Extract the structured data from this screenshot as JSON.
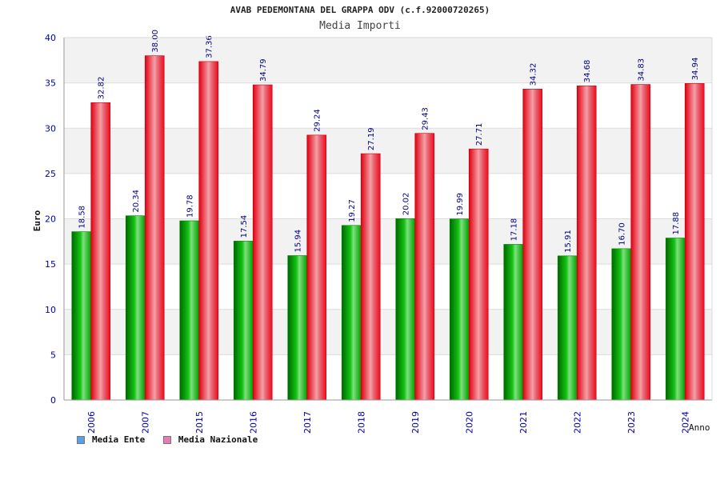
{
  "chart_data": {
    "type": "bar",
    "title": "AVAB PEDEMONTANA DEL GRAPPA ODV (c.f.92000720265)",
    "subtitle": "Media Importi",
    "xlabel": "Anno",
    "ylabel": "Euro",
    "ylim": [
      0,
      40
    ],
    "yticks": [
      0,
      5,
      10,
      15,
      20,
      25,
      30,
      35,
      40
    ],
    "grid": true,
    "legend_placement": "bottom-left",
    "categories": [
      "2006",
      "2007",
      "2015",
      "2016",
      "2017",
      "2018",
      "2019",
      "2020",
      "2021",
      "2022",
      "2023",
      "2024"
    ],
    "series": [
      {
        "name": "Media Ente",
        "values": [
          18.58,
          20.34,
          19.78,
          17.54,
          15.94,
          19.27,
          20.02,
          19.99,
          17.18,
          15.91,
          16.7,
          17.88
        ],
        "labels": [
          "18.58",
          "20.34",
          "19.78",
          "17.54",
          "15.94",
          "19.27",
          "20.02",
          "19.99",
          "17.18",
          "15.91",
          "16.70",
          "17.88"
        ],
        "color": "#00b000",
        "legend_color": "#5aa0e8"
      },
      {
        "name": "Media Nazionale",
        "values": [
          32.82,
          38.0,
          37.36,
          34.79,
          29.24,
          27.19,
          29.43,
          27.71,
          34.32,
          34.68,
          34.83,
          34.94
        ],
        "labels": [
          "32.82",
          "38.00",
          "37.36",
          "34.79",
          "29.24",
          "27.19",
          "29.43",
          "27.71",
          "34.32",
          "34.68",
          "34.83",
          "34.94"
        ],
        "color": "#ee1122",
        "legend_color": "#e87ab4"
      }
    ]
  }
}
